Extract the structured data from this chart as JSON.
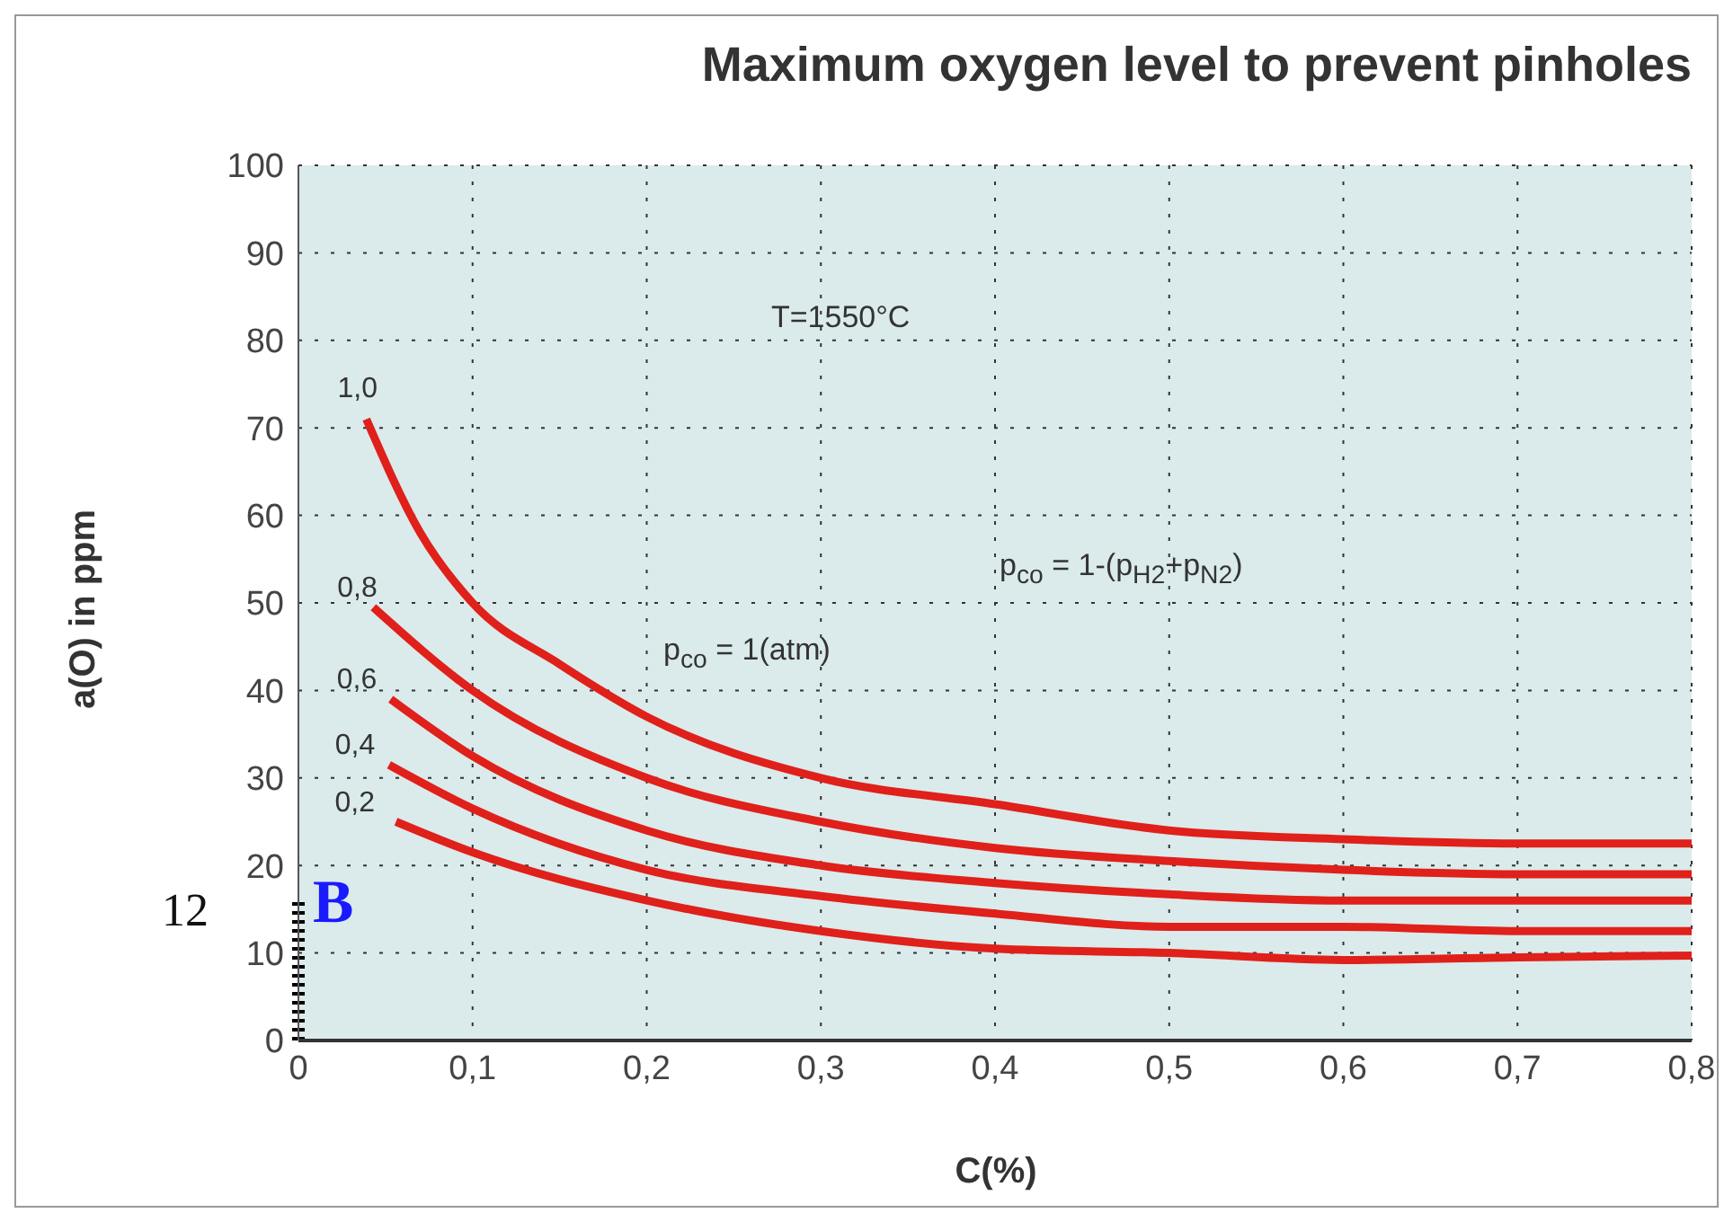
{
  "chart_data": {
    "type": "line",
    "title": "Maximum oxygen level to prevent pinholes",
    "xlabel": "C(%)",
    "ylabel": "a(O) in ppm",
    "xlim": [
      0,
      0.8
    ],
    "xticks": [
      0,
      {
        "value": 0.1,
        "label": "0,1"
      },
      {
        "value": 0.2,
        "label": "0,2"
      },
      {
        "value": 0.3,
        "label": "0,3"
      },
      {
        "value": 0.4,
        "label": "0,4"
      },
      {
        "value": 0.5,
        "label": "0,5"
      },
      {
        "value": 0.6,
        "label": "0,6"
      },
      {
        "value": 0.7,
        "label": "0,7"
      },
      {
        "value": 0.8,
        "label": "0,8"
      }
    ],
    "ylim": [
      0,
      100
    ],
    "yticks": [
      0,
      10,
      20,
      30,
      40,
      50,
      60,
      70,
      80,
      90,
      100
    ],
    "grid": true,
    "legend": false,
    "marker": "none",
    "line_style": "solid",
    "series": [
      {
        "color": "#e0201a",
        "x": [
          0.039,
          0.07,
          0.1,
          0.15,
          0.2,
          0.3,
          0.4,
          0.5,
          0.6,
          0.7,
          0.8
        ],
        "values": [
          71,
          58,
          50,
          43,
          37,
          30,
          27,
          24,
          23,
          22.5,
          22.5
        ]
      },
      {
        "color": "#e0201a",
        "x": [
          0.043,
          0.1,
          0.2,
          0.3,
          0.4,
          0.5,
          0.6,
          0.7,
          0.8
        ],
        "values": [
          49.5,
          40,
          30,
          25,
          22,
          20.5,
          19.5,
          19,
          19
        ]
      },
      {
        "color": "#e0201a",
        "x": [
          0.053,
          0.1,
          0.2,
          0.3,
          0.4,
          0.5,
          0.6,
          0.7,
          0.8
        ],
        "values": [
          39,
          32.5,
          24,
          20,
          18,
          16.7,
          16,
          16,
          16
        ]
      },
      {
        "color": "#e0201a",
        "x": [
          0.052,
          0.1,
          0.2,
          0.3,
          0.4,
          0.5,
          0.6,
          0.7,
          0.8
        ],
        "values": [
          31.5,
          26.5,
          19.5,
          16.5,
          14.5,
          13,
          13,
          12.5,
          12.5
        ]
      },
      {
        "color": "#e0201a",
        "x": [
          0.056,
          0.1,
          0.2,
          0.3,
          0.4,
          0.5,
          0.6,
          0.7,
          0.8
        ],
        "values": [
          25,
          21.5,
          16,
          12.5,
          10.5,
          10,
          9.2,
          9.5,
          9.7
        ]
      },
      {
        "color": "#000000",
        "line_style": "dotted",
        "x": [
          0,
          0
        ],
        "values": [
          0,
          16
        ]
      }
    ],
    "annotations": [
      "T=1550°C",
      "p$_{co}$ = 1(atm)",
      "p$_{co}$ = 1-(p$_{H2}$+p$_{N2}$)",
      {
        "text": "1,0",
        "x": 0.039,
        "y": 71
      },
      {
        "text": "0,8",
        "x": 0.043,
        "y": 49.5
      },
      {
        "text": "0,6",
        "x": 0.053,
        "y": 39
      },
      {
        "text": "0,4",
        "x": 0.052,
        "y": 31.5
      },
      {
        "text": "0,2",
        "x": 0.056,
        "y": 25
      },
      {
        "text": "B",
        "x": 0,
        "y": 16
      },
      {
        "text": "12",
        "x": 0,
        "y": 16
      }
    ]
  }
}
